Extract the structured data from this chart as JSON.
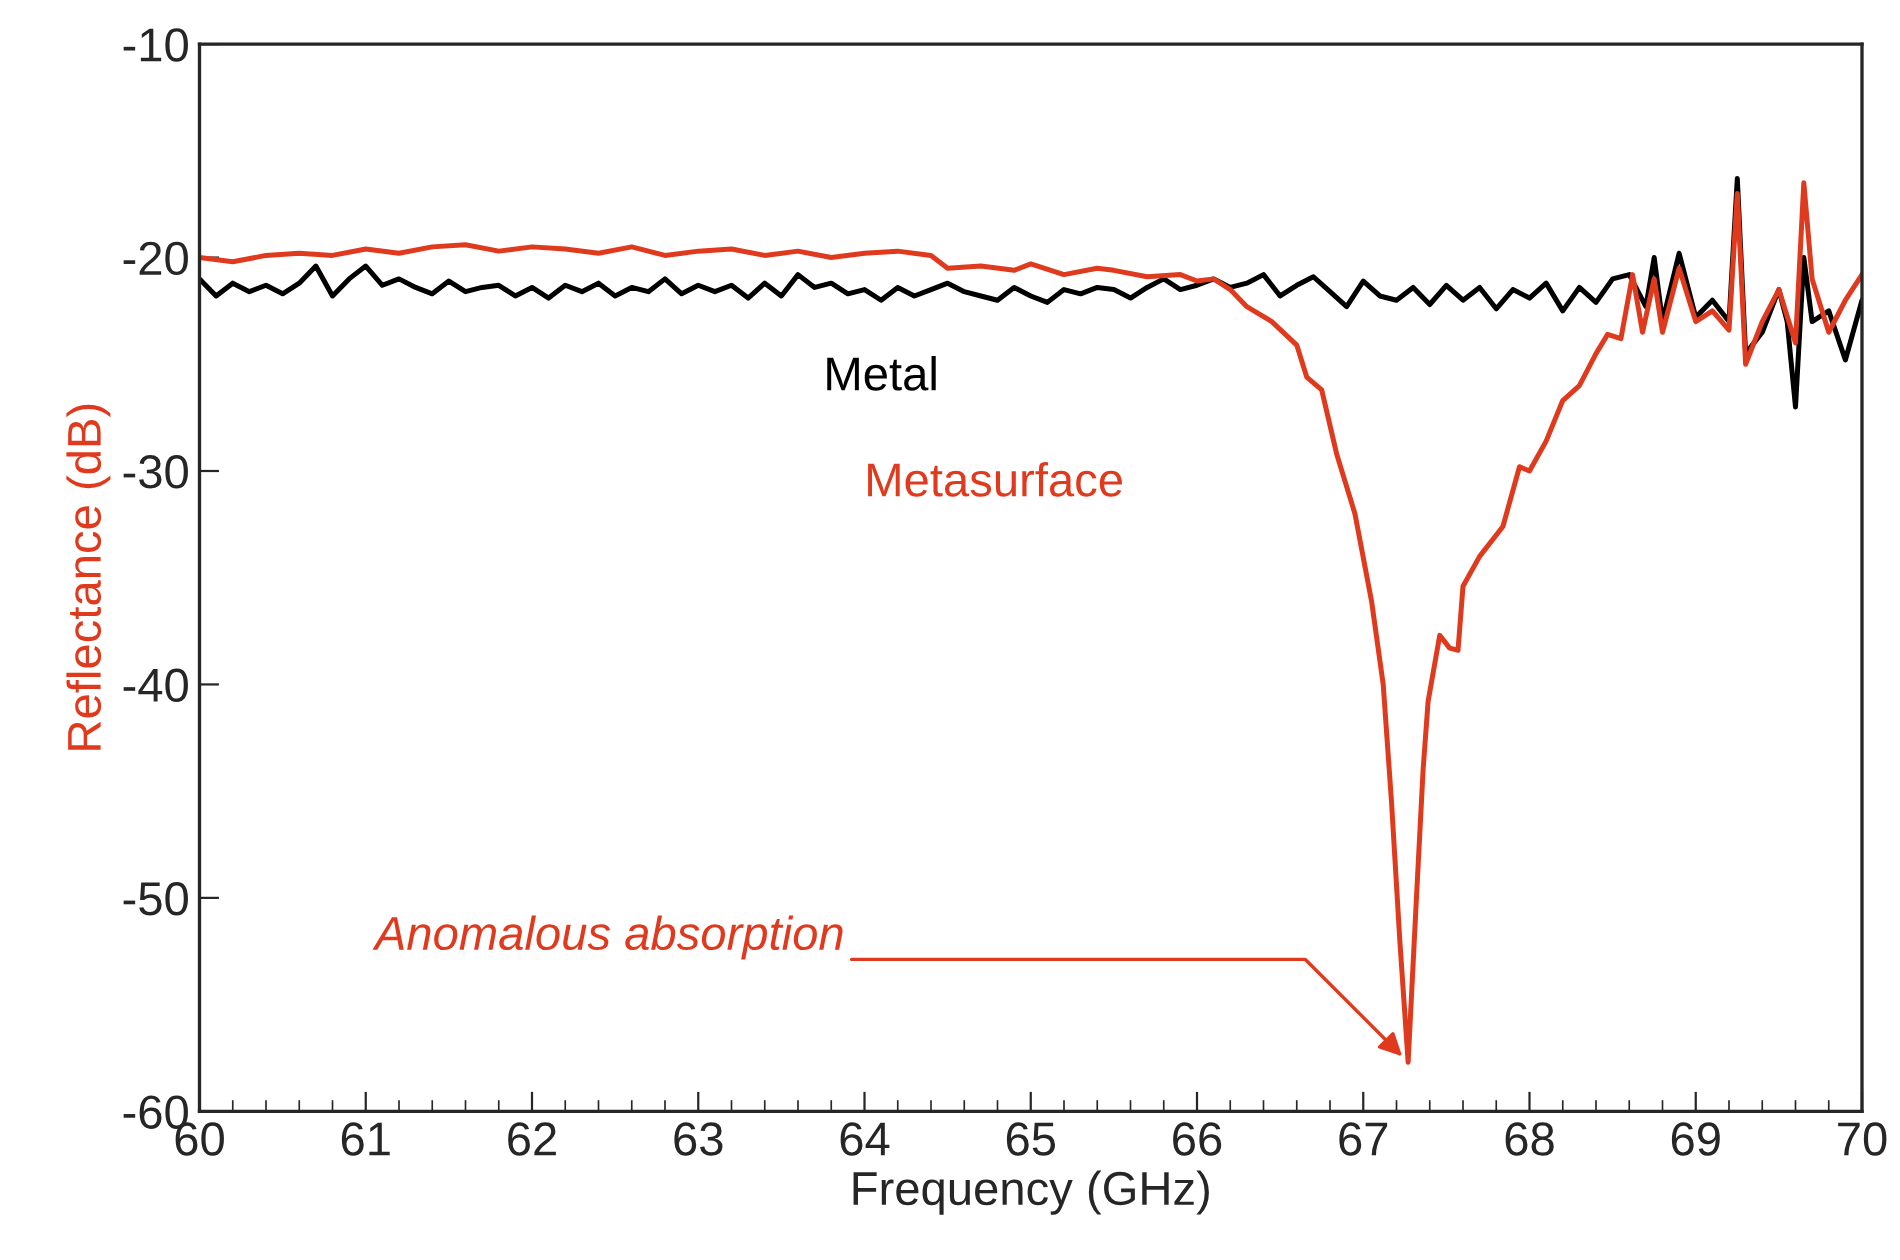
{
  "chart_data": {
    "type": "line",
    "xlabel": "Frequency (GHz)",
    "ylabel": "Reflectance (dB)",
    "xlim": [
      60,
      70
    ],
    "xticks": [
      60,
      61,
      62,
      63,
      64,
      65,
      66,
      67,
      68,
      69,
      70
    ],
    "ylim": [
      -60,
      -10
    ],
    "yticks": [
      -60,
      -50,
      -40,
      -30,
      -20,
      -10
    ],
    "grid": false,
    "legend": false,
    "marker": "none",
    "line_style": "solid",
    "annotations": [
      {
        "text": "Anomalous absorption",
        "x": 67.27,
        "y": -57.7
      }
    ],
    "series": [
      {
        "name": "Metal",
        "color": "#000000",
        "x": [
          60.0,
          60.1,
          60.2,
          60.3,
          60.4,
          60.5,
          60.6,
          60.7,
          60.8,
          60.9,
          61.0,
          61.1,
          61.2,
          61.3,
          61.4,
          61.5,
          61.6,
          61.7,
          61.8,
          61.9,
          62.0,
          62.1,
          62.2,
          62.3,
          62.4,
          62.5,
          62.6,
          62.7,
          62.8,
          62.9,
          63.0,
          63.1,
          63.2,
          63.3,
          63.4,
          63.5,
          63.6,
          63.7,
          63.8,
          63.9,
          64.0,
          64.1,
          64.2,
          64.3,
          64.4,
          64.5,
          64.6,
          64.7,
          64.8,
          64.9,
          65.0,
          65.1,
          65.2,
          65.3,
          65.4,
          65.5,
          65.6,
          65.7,
          65.8,
          65.9,
          66.0,
          66.1,
          66.2,
          66.3,
          66.4,
          66.5,
          66.6,
          66.7,
          66.8,
          66.9,
          67.0,
          67.1,
          67.2,
          67.3,
          67.4,
          67.5,
          67.6,
          67.7,
          67.8,
          67.9,
          68.0,
          68.1,
          68.2,
          68.3,
          68.4,
          68.5,
          68.6,
          68.7,
          68.75,
          68.8,
          68.9,
          69.0,
          69.1,
          69.2,
          69.25,
          69.3,
          69.4,
          69.5,
          69.55,
          69.6,
          69.65,
          69.7,
          69.8,
          69.9,
          70.0
        ],
        "values": [
          -21,
          -21.8,
          -21.2,
          -21.6,
          -21.3,
          -21.7,
          -21.2,
          -20.4,
          -21.8,
          -21.0,
          -20.4,
          -21.3,
          -21.0,
          -21.4,
          -21.7,
          -21.1,
          -21.6,
          -21.4,
          -21.3,
          -21.8,
          -21.4,
          -21.9,
          -21.3,
          -21.6,
          -21.2,
          -21.8,
          -21.4,
          -21.6,
          -21.0,
          -21.7,
          -21.3,
          -21.6,
          -21.3,
          -21.9,
          -21.2,
          -21.8,
          -20.8,
          -21.4,
          -21.2,
          -21.7,
          -21.5,
          -22.0,
          -21.4,
          -21.8,
          -21.5,
          -21.2,
          -21.6,
          -21.8,
          -22.0,
          -21.4,
          -21.8,
          -22.1,
          -21.5,
          -21.7,
          -21.4,
          -21.5,
          -21.9,
          -21.4,
          -21.0,
          -21.5,
          -21.3,
          -21.0,
          -21.4,
          -21.2,
          -20.8,
          -21.8,
          -21.3,
          -20.9,
          -21.6,
          -22.3,
          -21.1,
          -21.8,
          -22.0,
          -21.4,
          -22.2,
          -21.3,
          -22.0,
          -21.4,
          -22.4,
          -21.5,
          -21.9,
          -21.2,
          -22.5,
          -21.4,
          -22.1,
          -21.0,
          -20.8,
          -22.3,
          -20.0,
          -23.0,
          -19.8,
          -22.8,
          -22.0,
          -23.0,
          -16.3,
          -24.5,
          -23.5,
          -21.5,
          -23.0,
          -27.0,
          -20.0,
          -23.0,
          -22.5,
          -24.8,
          -22.0
        ]
      },
      {
        "name": "Metasurface",
        "color": "#e03a1e",
        "x": [
          60.0,
          60.2,
          60.4,
          60.6,
          60.8,
          61.0,
          61.2,
          61.4,
          61.6,
          61.8,
          62.0,
          62.2,
          62.4,
          62.6,
          62.8,
          63.0,
          63.2,
          63.4,
          63.6,
          63.8,
          64.0,
          64.2,
          64.4,
          64.5,
          64.7,
          64.9,
          65.0,
          65.2,
          65.4,
          65.5,
          65.7,
          65.9,
          66.0,
          66.1,
          66.2,
          66.3,
          66.45,
          66.6,
          66.66,
          66.75,
          66.84,
          66.95,
          67.05,
          67.12,
          67.17,
          67.22,
          67.27,
          67.32,
          67.36,
          67.39,
          67.46,
          67.52,
          67.57,
          67.6,
          67.7,
          67.84,
          67.94,
          68.0,
          68.1,
          68.2,
          68.3,
          68.4,
          68.47,
          68.55,
          68.62,
          68.68,
          68.75,
          68.8,
          68.9,
          69.0,
          69.1,
          69.2,
          69.25,
          69.3,
          69.4,
          69.5,
          69.6,
          69.65,
          69.7,
          69.8,
          69.9,
          70.0
        ],
        "values": [
          -20.0,
          -20.2,
          -19.9,
          -19.8,
          -19.9,
          -19.6,
          -19.8,
          -19.5,
          -19.4,
          -19.7,
          -19.5,
          -19.6,
          -19.8,
          -19.5,
          -19.9,
          -19.7,
          -19.6,
          -19.9,
          -19.7,
          -20.0,
          -19.8,
          -19.7,
          -19.9,
          -20.5,
          -20.4,
          -20.6,
          -20.3,
          -20.8,
          -20.5,
          -20.6,
          -20.9,
          -20.8,
          -21.1,
          -21.0,
          -21.5,
          -22.3,
          -23.0,
          -24.1,
          -25.6,
          -26.2,
          -29.2,
          -32.0,
          -36.1,
          -40.0,
          -45.5,
          -52.0,
          -57.7,
          -50.0,
          -44.0,
          -40.8,
          -37.7,
          -38.3,
          -38.4,
          -35.4,
          -34.0,
          -32.6,
          -29.8,
          -30.0,
          -28.6,
          -26.7,
          -26.0,
          -24.5,
          -23.6,
          -23.8,
          -20.8,
          -23.5,
          -21.0,
          -23.5,
          -20.5,
          -23.0,
          -22.5,
          -23.4,
          -17.0,
          -25.0,
          -23.0,
          -21.5,
          -24.0,
          -16.5,
          -21.0,
          -23.5,
          -22.0,
          -20.8
        ]
      }
    ]
  }
}
